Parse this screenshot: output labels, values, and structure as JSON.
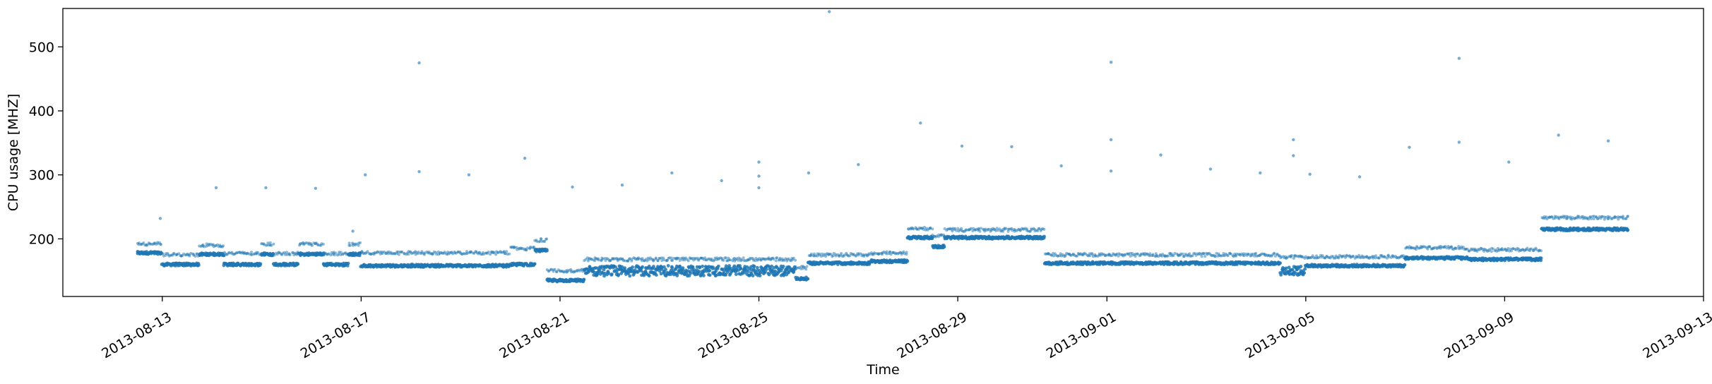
{
  "chart_data": {
    "type": "scatter",
    "title": "",
    "xlabel": "Time",
    "ylabel": "CPU usage [MHZ]",
    "x_type": "date",
    "xlim": [
      "2013-08-11T00:00",
      "2013-09-13T00:00"
    ],
    "ylim": [
      110,
      560
    ],
    "x_ticks": [
      "2013-08-13",
      "2013-08-17",
      "2013-08-21",
      "2013-08-25",
      "2013-08-29",
      "2013-09-01",
      "2013-09-05",
      "2013-09-09",
      "2013-09-13"
    ],
    "y_ticks": [
      200,
      300,
      400,
      500
    ],
    "grid": false,
    "legend": "none",
    "colors": {
      "points": "#1f77b4"
    },
    "series": [
      {
        "segments": [
          {
            "start": "2013-08-12T12:00",
            "end": "2013-08-13T00:00",
            "base": 178,
            "upper": 192
          },
          {
            "start": "2013-08-13T00:00",
            "end": "2013-08-13T18:00",
            "base": 160,
            "upper": 175
          },
          {
            "start": "2013-08-13T18:00",
            "end": "2013-08-14T06:00",
            "base": 176,
            "upper": 190
          },
          {
            "start": "2013-08-14T06:00",
            "end": "2013-08-15T00:00",
            "base": 160,
            "upper": 177
          },
          {
            "start": "2013-08-15T00:00",
            "end": "2013-08-15T06:00",
            "base": 176,
            "upper": 192
          },
          {
            "start": "2013-08-15T06:00",
            "end": "2013-08-15T18:00",
            "base": 160,
            "upper": 177
          },
          {
            "start": "2013-08-15T18:00",
            "end": "2013-08-16T06:00",
            "base": 176,
            "upper": 192
          },
          {
            "start": "2013-08-16T06:00",
            "end": "2013-08-16T18:00",
            "base": 160,
            "upper": 177
          },
          {
            "start": "2013-08-16T18:00",
            "end": "2013-08-17T00:00",
            "base": 176,
            "upper": 192
          },
          {
            "start": "2013-08-17T00:00",
            "end": "2013-08-20T00:00",
            "base": 158,
            "upper": 178
          },
          {
            "start": "2013-08-20T00:00",
            "end": "2013-08-20T12:00",
            "base": 160,
            "upper": 185
          },
          {
            "start": "2013-08-20T12:00",
            "end": "2013-08-20T18:00",
            "base": 182,
            "upper": 198
          },
          {
            "start": "2013-08-20T18:00",
            "end": "2013-08-21T12:00",
            "base": 135,
            "upper": 150
          },
          {
            "start": "2013-08-21T12:00",
            "end": "2013-08-25T18:00",
            "base": 150,
            "upper": 168,
            "noise": 16
          },
          {
            "start": "2013-08-25T18:00",
            "end": "2013-08-26T00:00",
            "base": 138,
            "upper": 155
          },
          {
            "start": "2013-08-26T00:00",
            "end": "2013-08-27T06:00",
            "base": 162,
            "upper": 175
          },
          {
            "start": "2013-08-27T06:00",
            "end": "2013-08-28T00:00",
            "base": 165,
            "upper": 178
          },
          {
            "start": "2013-08-28T00:00",
            "end": "2013-08-28T12:00",
            "base": 202,
            "upper": 216
          },
          {
            "start": "2013-08-28T12:00",
            "end": "2013-08-28T18:00",
            "base": 188,
            "upper": 205
          },
          {
            "start": "2013-08-28T18:00",
            "end": "2013-08-30T18:00",
            "base": 202,
            "upper": 214
          },
          {
            "start": "2013-08-30T18:00",
            "end": "2013-09-04T12:00",
            "base": 162,
            "upper": 175
          },
          {
            "start": "2013-09-04T12:00",
            "end": "2013-09-05T00:00",
            "base": 150,
            "upper": 172,
            "noise": 14
          },
          {
            "start": "2013-09-05T00:00",
            "end": "2013-09-07T00:00",
            "base": 158,
            "upper": 172
          },
          {
            "start": "2013-09-07T00:00",
            "end": "2013-09-08T06:00",
            "base": 170,
            "upper": 186
          },
          {
            "start": "2013-09-08T06:00",
            "end": "2013-09-09T18:00",
            "base": 168,
            "upper": 183
          },
          {
            "start": "2013-09-09T18:00",
            "end": "2013-09-11T12:00",
            "base": 215,
            "upper": 233
          }
        ],
        "outliers": [
          {
            "x": "2013-08-12T23:00",
            "y": 232
          },
          {
            "x": "2013-08-14T02:00",
            "y": 280
          },
          {
            "x": "2013-08-15T02:00",
            "y": 280
          },
          {
            "x": "2013-08-16T02:00",
            "y": 279
          },
          {
            "x": "2013-08-16T20:00",
            "y": 212
          },
          {
            "x": "2013-08-17T02:00",
            "y": 300
          },
          {
            "x": "2013-08-18T04:00",
            "y": 475
          },
          {
            "x": "2013-08-18T04:00",
            "y": 305
          },
          {
            "x": "2013-08-19T04:00",
            "y": 300
          },
          {
            "x": "2013-08-20T07:00",
            "y": 326
          },
          {
            "x": "2013-08-21T06:00",
            "y": 281
          },
          {
            "x": "2013-08-22T06:00",
            "y": 284
          },
          {
            "x": "2013-08-23T06:00",
            "y": 303
          },
          {
            "x": "2013-08-24T06:00",
            "y": 291
          },
          {
            "x": "2013-08-25T00:00",
            "y": 320
          },
          {
            "x": "2013-08-25T00:00",
            "y": 298
          },
          {
            "x": "2013-08-25T00:00",
            "y": 280
          },
          {
            "x": "2013-08-26T00:00",
            "y": 303
          },
          {
            "x": "2013-08-26T10:00",
            "y": 555
          },
          {
            "x": "2013-08-27T00:00",
            "y": 316
          },
          {
            "x": "2013-08-28T06:00",
            "y": 381
          },
          {
            "x": "2013-08-29T02:00",
            "y": 345
          },
          {
            "x": "2013-08-30T02:00",
            "y": 344
          },
          {
            "x": "2013-08-31T02:00",
            "y": 314
          },
          {
            "x": "2013-09-01T02:00",
            "y": 476
          },
          {
            "x": "2013-09-01T02:00",
            "y": 355
          },
          {
            "x": "2013-09-01T02:00",
            "y": 306
          },
          {
            "x": "2013-09-02T02:00",
            "y": 331
          },
          {
            "x": "2013-09-03T02:00",
            "y": 309
          },
          {
            "x": "2013-09-04T02:00",
            "y": 303
          },
          {
            "x": "2013-09-04T18:00",
            "y": 355
          },
          {
            "x": "2013-09-04T18:00",
            "y": 330
          },
          {
            "x": "2013-09-05T02:00",
            "y": 301
          },
          {
            "x": "2013-09-06T02:00",
            "y": 297
          },
          {
            "x": "2013-09-07T02:00",
            "y": 343
          },
          {
            "x": "2013-09-08T02:00",
            "y": 482
          },
          {
            "x": "2013-09-08T02:00",
            "y": 351
          },
          {
            "x": "2013-09-09T02:00",
            "y": 320
          },
          {
            "x": "2013-09-10T02:00",
            "y": 362
          },
          {
            "x": "2013-09-11T02:00",
            "y": 353
          }
        ]
      }
    ]
  }
}
